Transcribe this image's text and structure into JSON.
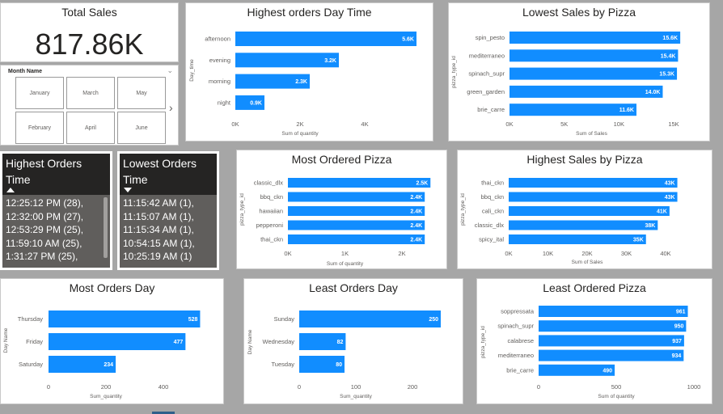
{
  "kpi": {
    "title": "Total Sales",
    "value": "817.86K"
  },
  "slicer": {
    "title": "Month Name",
    "months": [
      "January",
      "March",
      "May",
      "February",
      "April",
      "June"
    ]
  },
  "tables": {
    "highest": {
      "title_line1": "Highest Orders",
      "title_line2": "Time",
      "rows": [
        "12:25:12 PM (28),",
        "12:32:00 PM (27),",
        "12:53:29 PM (25),",
        "11:59:10 AM (25),",
        "1:31:27 PM (25),"
      ]
    },
    "lowest": {
      "title_line1": "Lowest Orders",
      "title_line2": "Time",
      "rows": [
        "11:15:42 AM (1),",
        "11:15:07 AM (1),",
        "11:15:34 AM (1),",
        "10:54:15 AM (1),",
        "10:25:19 AM (1)"
      ]
    }
  },
  "colors": {
    "bar": "#118dff",
    "axis_text": "#605e5c"
  },
  "chart_data": [
    {
      "type": "bar",
      "title": "Highest orders Day Time",
      "xlabel": "Sum of quantity",
      "ylabel": "Day_time",
      "categories": [
        "afternoon",
        "evening",
        "morning",
        "night"
      ],
      "values": [
        5600,
        3200,
        2300,
        900
      ],
      "value_labels": [
        "5.6K",
        "3.2K",
        "2.3K",
        "0.9K"
      ],
      "ticks": [
        0,
        2000,
        4000
      ],
      "tick_labels": [
        "0K",
        "2K",
        "4K"
      ]
    },
    {
      "type": "bar",
      "title": "Lowest Sales by Pizza",
      "xlabel": "Sum of Sales",
      "ylabel": "pizza_type_id",
      "categories": [
        "spin_pesto",
        "mediterraneo",
        "spinach_supr",
        "green_garden",
        "brie_carre"
      ],
      "values": [
        15600,
        15400,
        15300,
        14000,
        11600
      ],
      "value_labels": [
        "15.6K",
        "15.4K",
        "15.3K",
        "14.0K",
        "11.6K"
      ],
      "ticks": [
        0,
        5000,
        10000,
        15000
      ],
      "tick_labels": [
        "0K",
        "5K",
        "10K",
        "15K"
      ]
    },
    {
      "type": "bar",
      "title": "Most Ordered Pizza",
      "xlabel": "Sum of quantity",
      "ylabel": "pizza_type_id",
      "categories": [
        "classic_dlx",
        "bbq_ckn",
        "hawaiian",
        "pepperoni",
        "thai_ckn"
      ],
      "values": [
        2500,
        2400,
        2400,
        2400,
        2400
      ],
      "value_labels": [
        "2.5K",
        "2.4K",
        "2.4K",
        "2.4K",
        "2.4K"
      ],
      "ticks": [
        0,
        1000,
        2000
      ],
      "tick_labels": [
        "0K",
        "1K",
        "2K"
      ]
    },
    {
      "type": "bar",
      "title": "Highest Sales by Pizza",
      "xlabel": "Sum of Sales",
      "ylabel": "pizza_type_id",
      "categories": [
        "thai_ckn",
        "bbq_ckn",
        "cali_ckn",
        "classic_dlx",
        "spicy_ital"
      ],
      "values": [
        43000,
        43000,
        41000,
        38000,
        35000
      ],
      "value_labels": [
        "43K",
        "43K",
        "41K",
        "38K",
        "35K"
      ],
      "ticks": [
        0,
        10000,
        20000,
        30000,
        40000
      ],
      "tick_labels": [
        "0K",
        "10K",
        "20K",
        "30K",
        "40K"
      ]
    },
    {
      "type": "bar",
      "title": "Most Orders Day",
      "xlabel": "Sum_quantity",
      "ylabel": "Day Name",
      "categories": [
        "Thursday",
        "Friday",
        "Saturday"
      ],
      "values": [
        528,
        477,
        234
      ],
      "value_labels": [
        "528",
        "477",
        "234"
      ],
      "ticks": [
        0,
        200,
        400
      ],
      "tick_labels": [
        "0",
        "200",
        "400"
      ]
    },
    {
      "type": "bar",
      "title": "Least Orders Day",
      "xlabel": "Sum_quantity",
      "ylabel": "Day Name",
      "categories": [
        "Sunday",
        "Wednesday",
        "Tuesday"
      ],
      "values": [
        250,
        82,
        80
      ],
      "value_labels": [
        "250",
        "82",
        "80"
      ],
      "ticks": [
        0,
        100,
        200
      ],
      "tick_labels": [
        "0",
        "100",
        "200"
      ]
    },
    {
      "type": "bar",
      "title": "Least Ordered Pizza",
      "xlabel": "Sum of quantity",
      "ylabel": "pizza_type_id",
      "categories": [
        "soppressata",
        "spinach_supr",
        "calabrese",
        "mediterraneo",
        "brie_carre"
      ],
      "values": [
        961,
        950,
        937,
        934,
        490
      ],
      "value_labels": [
        "961",
        "950",
        "937",
        "934",
        "490"
      ],
      "ticks": [
        0,
        500,
        1000
      ],
      "tick_labels": [
        "0",
        "500",
        "1000"
      ]
    }
  ]
}
